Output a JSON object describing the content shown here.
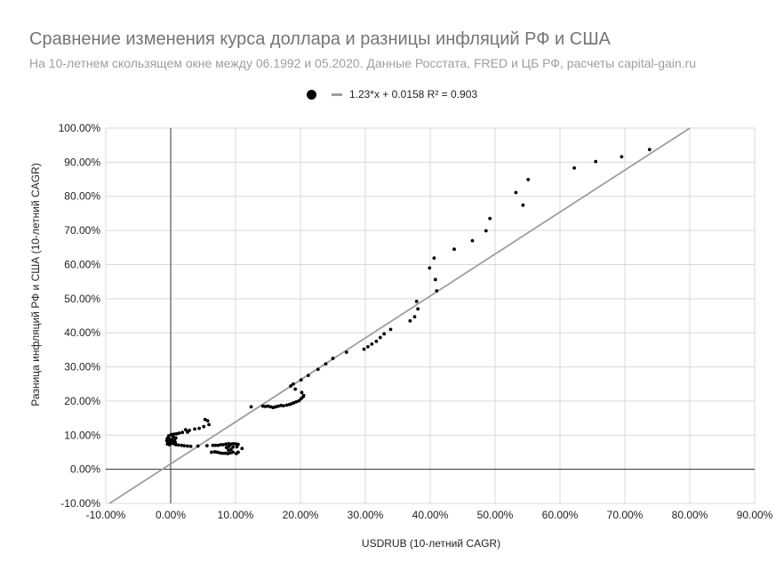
{
  "chart_data": {
    "type": "scatter",
    "title": "Сравнение изменения курса доллара и разницы инфляций РФ и США",
    "subtitle": "На 10-летнем скользящем окне между 06.1992 и 05.2020. Данные Росстата, FRED и ЦБ РФ, расчеты capital-gain.ru",
    "xlabel": "USDRUB (10-летний CAGR)",
    "ylabel": "Разница инфляций РФ и США (10-летний CAGR)",
    "xlim": [
      -10,
      90
    ],
    "ylim": [
      -10,
      100
    ],
    "x_ticks": [
      "-10.00%",
      "0.00%",
      "10.00%",
      "20.00%",
      "30.00%",
      "40.00%",
      "50.00%",
      "60.00%",
      "70.00%",
      "80.00%",
      "90.00%"
    ],
    "y_ticks": [
      "-10.00%",
      "0.00%",
      "10.00%",
      "20.00%",
      "30.00%",
      "40.00%",
      "50.00%",
      "60.00%",
      "70.00%",
      "80.00%",
      "90.00%",
      "100.00%"
    ],
    "grid": true,
    "legend_position": "top",
    "trendline": {
      "label": "1.23*x + 0.0158 R² = 0.903",
      "slope": 1.23,
      "intercept": 1.58,
      "color": "#9e9e9e"
    },
    "point_color": "#000000",
    "points": [
      [
        73.8,
        93.7
      ],
      [
        69.5,
        91.6
      ],
      [
        65.5,
        90.2
      ],
      [
        62.2,
        88.3
      ],
      [
        55.1,
        84.9
      ],
      [
        53.2,
        81.1
      ],
      [
        54.3,
        77.4
      ],
      [
        49.2,
        73.5
      ],
      [
        48.6,
        69.9
      ],
      [
        46.5,
        67.0
      ],
      [
        43.7,
        64.5
      ],
      [
        40.6,
        61.9
      ],
      [
        39.9,
        59.0
      ],
      [
        40.8,
        55.6
      ],
      [
        41.0,
        52.3
      ],
      [
        37.9,
        49.2
      ],
      [
        38.1,
        47.0
      ],
      [
        37.6,
        44.7
      ],
      [
        36.9,
        43.5
      ],
      [
        33.9,
        41.0
      ],
      [
        32.9,
        39.7
      ],
      [
        32.3,
        38.6
      ],
      [
        31.7,
        37.5
      ],
      [
        31.0,
        36.7
      ],
      [
        30.4,
        35.9
      ],
      [
        29.8,
        35.2
      ],
      [
        27.1,
        34.3
      ],
      [
        25.0,
        32.5
      ],
      [
        23.9,
        30.9
      ],
      [
        22.7,
        29.3
      ],
      [
        21.2,
        27.5
      ],
      [
        20.1,
        26.2
      ],
      [
        18.9,
        25.0
      ],
      [
        19.2,
        23.5
      ],
      [
        18.5,
        24.4
      ],
      [
        20.2,
        22.5
      ],
      [
        20.5,
        21.6
      ],
      [
        20.1,
        20.7
      ],
      [
        20.4,
        21.2
      ],
      [
        19.8,
        20.1
      ],
      [
        19.4,
        19.8
      ],
      [
        19.0,
        19.5
      ],
      [
        18.6,
        19.2
      ],
      [
        18.3,
        19.0
      ],
      [
        17.9,
        18.8
      ],
      [
        17.4,
        18.6
      ],
      [
        17.0,
        18.7
      ],
      [
        16.6,
        18.5
      ],
      [
        16.2,
        18.3
      ],
      [
        15.8,
        18.1
      ],
      [
        15.4,
        18.3
      ],
      [
        15.0,
        18.5
      ],
      [
        14.6,
        18.4
      ],
      [
        14.2,
        18.5
      ],
      [
        12.4,
        18.3
      ],
      [
        11.0,
        6.1
      ],
      [
        10.4,
        5.0
      ],
      [
        10.1,
        4.6
      ],
      [
        9.6,
        5.0
      ],
      [
        9.2,
        4.8
      ],
      [
        8.8,
        4.6
      ],
      [
        8.4,
        4.7
      ],
      [
        8.0,
        4.7
      ],
      [
        7.6,
        4.8
      ],
      [
        7.2,
        5.0
      ],
      [
        6.8,
        5.1
      ],
      [
        6.3,
        5.0
      ],
      [
        6.5,
        7.0
      ],
      [
        6.9,
        7.0
      ],
      [
        7.3,
        7.0
      ],
      [
        7.7,
        7.2
      ],
      [
        8.1,
        7.2
      ],
      [
        8.5,
        7.4
      ],
      [
        8.9,
        7.5
      ],
      [
        9.3,
        7.4
      ],
      [
        9.7,
        7.5
      ],
      [
        10.1,
        7.4
      ],
      [
        10.4,
        7.3
      ],
      [
        10.2,
        6.6
      ],
      [
        9.6,
        6.5
      ],
      [
        9.0,
        6.7
      ],
      [
        8.6,
        6.4
      ],
      [
        8.9,
        5.6
      ],
      [
        9.3,
        5.8
      ],
      [
        5.3,
        14.6
      ],
      [
        5.7,
        14.2
      ],
      [
        5.9,
        13.1
      ],
      [
        5.1,
        12.5
      ],
      [
        4.4,
        12.0
      ],
      [
        3.7,
        11.8
      ],
      [
        2.9,
        11.4
      ],
      [
        2.6,
        10.9
      ],
      [
        2.3,
        11.6
      ],
      [
        1.8,
        10.8
      ],
      [
        1.3,
        10.6
      ],
      [
        0.9,
        10.4
      ],
      [
        0.5,
        10.3
      ],
      [
        0.1,
        10.2
      ],
      [
        -0.3,
        9.8
      ],
      [
        0.4,
        9.5
      ],
      [
        0.8,
        9.2
      ],
      [
        -0.5,
        9.1
      ],
      [
        -0.2,
        8.8
      ],
      [
        0.2,
        8.6
      ],
      [
        0.6,
        8.5
      ],
      [
        -0.6,
        8.4
      ],
      [
        -0.1,
        8.2
      ],
      [
        0.3,
        8.0
      ],
      [
        0.7,
        7.9
      ],
      [
        -0.4,
        7.9
      ],
      [
        0.0,
        7.6
      ],
      [
        -0.5,
        7.4
      ],
      [
        -0.2,
        7.2
      ],
      [
        0.4,
        7.5
      ],
      [
        0.8,
        7.2
      ],
      [
        1.2,
        7.1
      ],
      [
        1.7,
        7.0
      ],
      [
        2.1,
        6.9
      ],
      [
        2.6,
        6.8
      ],
      [
        3.1,
        6.7
      ],
      [
        4.2,
        6.8
      ],
      [
        5.6,
        6.9
      ]
    ]
  }
}
